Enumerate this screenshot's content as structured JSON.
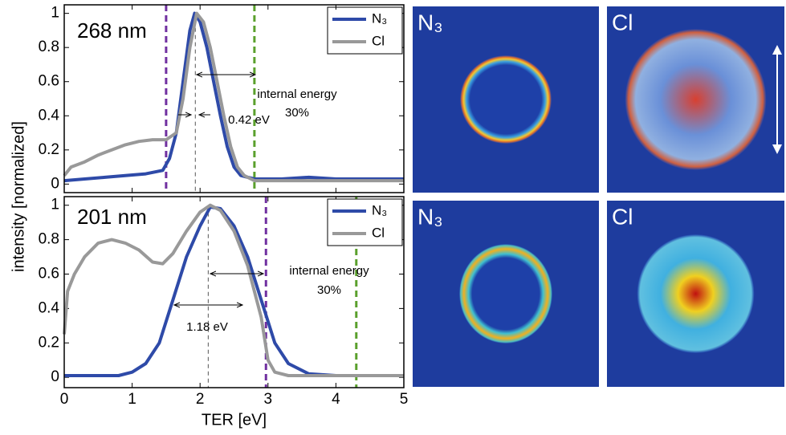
{
  "chart_data": [
    {
      "type": "line",
      "ylabel": "intensity [normalized]",
      "xlim": [
        0,
        5
      ],
      "ylim": [
        -0.05,
        1.05
      ],
      "yticks": [
        0,
        0.2,
        0.4,
        0.6,
        0.8,
        1
      ],
      "annotations": [
        "268 nm",
        "internal energy",
        "30%",
        "0.42 eV"
      ],
      "vlines": [
        {
          "x": 1.5,
          "color": "#7030a0"
        },
        {
          "x": 2.8,
          "color": "#5aa02c"
        },
        {
          "x": 1.93,
          "color": "#555555"
        }
      ],
      "legend": "upper right",
      "series": [
        {
          "name": "N₃",
          "color": "#2e4aa8",
          "x": [
            0,
            0.3,
            0.6,
            0.9,
            1.2,
            1.45,
            1.55,
            1.65,
            1.75,
            1.85,
            1.92,
            2.0,
            2.1,
            2.2,
            2.3,
            2.4,
            2.5,
            2.6,
            2.8,
            3.2,
            3.6,
            4.0,
            4.5,
            5
          ],
          "values": [
            0.02,
            0.03,
            0.04,
            0.05,
            0.06,
            0.08,
            0.15,
            0.3,
            0.6,
            0.9,
            1.0,
            0.95,
            0.8,
            0.6,
            0.4,
            0.22,
            0.1,
            0.05,
            0.03,
            0.03,
            0.04,
            0.03,
            0.03,
            0.03
          ]
        },
        {
          "name": "Cl",
          "color": "#999999",
          "x": [
            0,
            0.1,
            0.3,
            0.5,
            0.7,
            0.9,
            1.1,
            1.3,
            1.5,
            1.65,
            1.75,
            1.85,
            1.95,
            2.05,
            2.15,
            2.25,
            2.35,
            2.45,
            2.55,
            2.65,
            2.8,
            3.5,
            5
          ],
          "values": [
            0.05,
            0.1,
            0.13,
            0.17,
            0.2,
            0.23,
            0.25,
            0.26,
            0.26,
            0.3,
            0.5,
            0.8,
            1.0,
            0.95,
            0.8,
            0.6,
            0.4,
            0.22,
            0.1,
            0.05,
            0.02,
            0.02,
            0.02
          ]
        }
      ]
    },
    {
      "type": "line",
      "xlabel": "TER [eV]",
      "xlim": [
        0,
        5
      ],
      "ylim": [
        -0.06,
        1.05
      ],
      "xticks": [
        0,
        1,
        2,
        3,
        4,
        5
      ],
      "yticks": [
        0,
        0.2,
        0.4,
        0.6,
        0.8,
        1
      ],
      "annotations": [
        "201 nm",
        "internal energy",
        "30%",
        "1.18 eV"
      ],
      "vlines": [
        {
          "x": 2.97,
          "color": "#7030a0"
        },
        {
          "x": 4.3,
          "color": "#5aa02c"
        },
        {
          "x": 2.12,
          "color": "#555555"
        }
      ],
      "legend": "upper right",
      "series": [
        {
          "name": "N₃",
          "color": "#2e4aa8",
          "x": [
            0,
            0.5,
            0.8,
            1.0,
            1.2,
            1.4,
            1.6,
            1.8,
            2.0,
            2.15,
            2.3,
            2.5,
            2.7,
            2.9,
            3.1,
            3.3,
            3.6,
            4,
            5
          ],
          "values": [
            0.01,
            0.01,
            0.01,
            0.03,
            0.08,
            0.2,
            0.45,
            0.7,
            0.88,
            0.99,
            0.98,
            0.88,
            0.7,
            0.45,
            0.2,
            0.08,
            0.02,
            0.01,
            0.01
          ]
        },
        {
          "name": "Cl",
          "color": "#999999",
          "x": [
            0,
            0.05,
            0.15,
            0.3,
            0.5,
            0.7,
            0.9,
            1.1,
            1.3,
            1.45,
            1.6,
            1.8,
            2.0,
            2.15,
            2.3,
            2.5,
            2.7,
            2.9,
            3.0,
            3.1,
            3.3,
            5
          ],
          "values": [
            0.25,
            0.5,
            0.6,
            0.7,
            0.78,
            0.8,
            0.78,
            0.74,
            0.67,
            0.66,
            0.72,
            0.85,
            0.96,
            1.0,
            0.97,
            0.85,
            0.65,
            0.35,
            0.1,
            0.03,
            0.01,
            0.01
          ]
        }
      ]
    }
  ],
  "panels": [
    "N₃",
    "Cl",
    "N₃",
    "Cl"
  ]
}
